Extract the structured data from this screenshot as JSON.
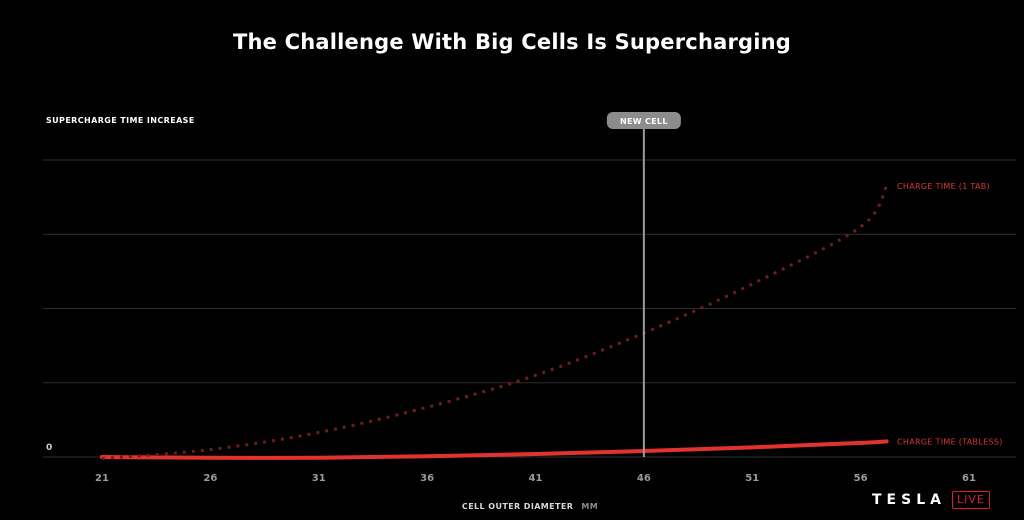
{
  "title": "The Challenge With Big Cells Is Supercharging",
  "colors": {
    "background": "#000000",
    "grid": "#2e2e2e",
    "tabless": "#e0332d",
    "one_tab": "#6e1d1a",
    "marker": "#9a9a9a",
    "label_red": "#d4392f",
    "logo_accent": "#e31937"
  },
  "chart_data": {
    "type": "line",
    "title": "The Challenge With Big Cells Is Supercharging",
    "xlabel": "CELL OUTER DIAMETER",
    "xunit": "MM",
    "ylabel": "SUPERCHARGE TIME INCREASE",
    "xlim": [
      19,
      66
    ],
    "ylim": [
      0,
      4
    ],
    "x_ticks": [
      21,
      26,
      31,
      36,
      41,
      46,
      51,
      56,
      61
    ],
    "y_ticks": [
      0
    ],
    "grid": true,
    "series": [
      {
        "name": "CHARGE TIME (TABLESS)",
        "style": "solid",
        "x": [
          21,
          26,
          31,
          36,
          41,
          46,
          51,
          56,
          57.2
        ],
        "y": [
          0,
          -0.01,
          -0.01,
          0.01,
          0.04,
          0.08,
          0.13,
          0.19,
          0.21
        ]
      },
      {
        "name": "CHARGE TIME (1 TAB)",
        "style": "dotted",
        "x": [
          21,
          26,
          31,
          36,
          41,
          46,
          51,
          56,
          57.2
        ],
        "y": [
          -0.02,
          0.1,
          0.33,
          0.67,
          1.1,
          1.67,
          2.33,
          3.1,
          3.65
        ]
      }
    ],
    "markers": [
      {
        "label": "NEW CELL",
        "x": 46
      }
    ]
  },
  "logo": {
    "wordmark": "TESLA",
    "badge": "LIVE"
  }
}
